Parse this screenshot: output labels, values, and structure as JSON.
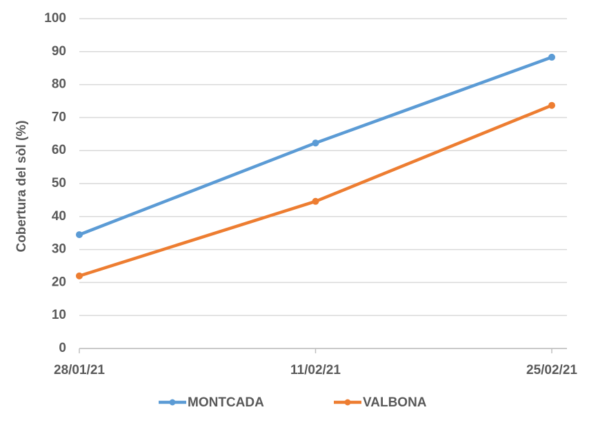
{
  "chart_data": {
    "type": "line",
    "y_label": "Cobertura del sòl (%)",
    "categories": [
      "28/01/21",
      "11/02/21",
      "25/02/21"
    ],
    "series": [
      {
        "name": "MONTCADA",
        "color": "#5b9bd5",
        "values": [
          34.5,
          62.3,
          88.3
        ]
      },
      {
        "name": "VALBONA",
        "color": "#ed7d31",
        "values": [
          22,
          44.6,
          73.7
        ]
      }
    ],
    "ylim": [
      0,
      100
    ],
    "yticks": [
      0,
      10,
      20,
      30,
      40,
      50,
      60,
      70,
      80,
      90,
      100
    ],
    "grid": true,
    "legend": "bottom"
  }
}
